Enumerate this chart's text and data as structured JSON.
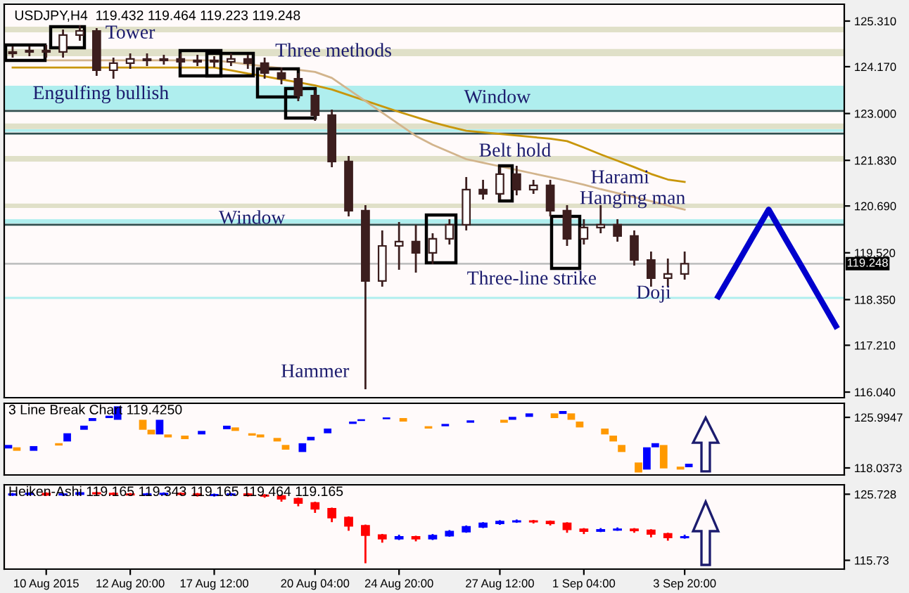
{
  "chart_data": [
    {
      "type": "candlestick",
      "title": "USDJPY,H4  119.432 119.464 119.223 119.248",
      "color": "#3c1e1e",
      "tick_labels": "y",
      "categories": [
        null,
        null,
        null,
        null,
        null,
        null,
        null,
        null,
        null,
        null,
        null,
        null,
        null,
        null,
        null,
        null,
        null,
        null,
        null,
        null,
        null,
        null,
        null,
        null,
        null,
        null,
        null,
        null,
        null,
        null,
        null,
        null,
        null,
        null,
        null,
        null,
        null,
        null,
        null,
        null,
        null,
        null,
        null,
        null,
        null,
        null,
        null,
        null,
        null,
        null
      ],
      "ohlc": [
        [
          124.502,
          124.678,
          124.397,
          124.538
        ],
        [
          124.538,
          124.678,
          124.432,
          124.573
        ],
        [
          124.573,
          124.713,
          124.397,
          124.538
        ],
        [
          124.538,
          125.099,
          124.397,
          124.959
        ],
        [
          124.959,
          125.205,
          124.818,
          125.064
        ],
        [
          125.064,
          125.134,
          123.941,
          124.081
        ],
        [
          124.081,
          124.397,
          123.87,
          124.257
        ],
        [
          124.257,
          124.502,
          124.116,
          124.362
        ],
        [
          124.362,
          124.502,
          124.186,
          124.327
        ],
        [
          124.327,
          124.467,
          124.222,
          124.362
        ],
        [
          124.362,
          124.502,
          124.151,
          124.292
        ],
        [
          124.292,
          124.467,
          124.186,
          124.327
        ],
        [
          124.327,
          124.432,
          124.151,
          124.292
        ],
        [
          124.292,
          124.502,
          124.186,
          124.362
        ],
        [
          124.362,
          124.467,
          124.116,
          124.257
        ],
        [
          124.257,
          124.397,
          123.87,
          124.011
        ],
        [
          124.011,
          124.151,
          123.73,
          123.87
        ],
        [
          123.87,
          124.011,
          123.309,
          123.449
        ],
        [
          123.449,
          123.59,
          122.817,
          122.958
        ],
        [
          122.958,
          123.098,
          121.658,
          121.799
        ],
        [
          121.799,
          121.939,
          120.43,
          120.57
        ],
        [
          120.57,
          120.711,
          116.111,
          118.815
        ],
        [
          118.815,
          120.079,
          118.674,
          119.692
        ],
        [
          119.692,
          120.289,
          119.096,
          119.798
        ],
        [
          119.798,
          120.219,
          119.025,
          119.517
        ],
        [
          119.517,
          120.008,
          119.236,
          119.868
        ],
        [
          119.868,
          120.36,
          119.727,
          120.219
        ],
        [
          120.219,
          121.413,
          120.079,
          121.097
        ],
        [
          121.097,
          121.343,
          120.851,
          120.992
        ],
        [
          120.992,
          121.658,
          120.851,
          121.483
        ],
        [
          121.483,
          121.694,
          120.956,
          121.097
        ],
        [
          121.097,
          121.343,
          120.992,
          121.202
        ],
        [
          121.202,
          121.343,
          120.43,
          120.57
        ],
        [
          120.57,
          120.711,
          119.692,
          119.868
        ],
        [
          119.868,
          120.36,
          119.727,
          120.149
        ],
        [
          120.149,
          120.711,
          120.008,
          120.219
        ],
        [
          120.219,
          120.36,
          119.798,
          119.938
        ],
        [
          119.938,
          120.079,
          119.201,
          119.341
        ],
        [
          119.341,
          119.552,
          118.674,
          118.885
        ],
        [
          118.885,
          119.376,
          118.674,
          118.99
        ],
        [
          118.99,
          119.552,
          118.85,
          119.248
        ],
        null,
        null,
        null,
        null,
        null,
        null,
        null,
        null,
        null
      ],
      "series": [
        {
          "type": "line",
          "color": "#c8960a",
          "values": [
            124.15,
            124.15,
            124.15,
            124.15,
            124.15,
            124.15,
            124.15,
            124.15,
            124.15,
            124.15,
            124.15,
            124.15,
            124.15,
            124.08,
            124.0,
            123.93,
            123.85,
            123.78,
            123.7,
            123.6,
            123.46,
            123.32,
            123.18,
            123.04,
            122.91,
            122.78,
            122.67,
            122.57,
            122.53,
            122.49,
            122.45,
            122.41,
            122.37,
            122.31,
            122.15,
            121.98,
            121.82,
            121.66,
            121.49,
            121.35,
            121.29,
            null,
            null,
            null,
            null,
            null,
            null,
            null,
            null,
            null
          ]
        },
        {
          "type": "line",
          "color": "#d2b48c",
          "values": [
            124.33,
            124.33,
            124.33,
            124.33,
            124.33,
            124.33,
            124.33,
            124.33,
            124.33,
            124.33,
            124.33,
            124.33,
            124.33,
            124.28,
            124.23,
            124.18,
            124.13,
            124.09,
            124.04,
            123.89,
            123.6,
            123.31,
            123.02,
            122.73,
            122.44,
            122.22,
            122.04,
            121.86,
            121.77,
            121.68,
            121.59,
            121.5,
            121.41,
            121.32,
            121.22,
            121.11,
            121.01,
            120.91,
            120.81,
            120.7,
            120.6,
            null,
            null,
            null,
            null,
            null,
            null,
            null,
            null,
            null
          ]
        },
        {
          "type": "line",
          "color": "#0000cd",
          "values": [
            null,
            null,
            null,
            null,
            null,
            null,
            null,
            null,
            null,
            null,
            null,
            null,
            null,
            null,
            null,
            null,
            null,
            null,
            null,
            null,
            null,
            null,
            null,
            null,
            null,
            null,
            null,
            null,
            null,
            null,
            null,
            null,
            null,
            null,
            null,
            null,
            null,
            null,
            null,
            null,
            null,
            null,
            118.43,
            119.15,
            119.88,
            120.6,
            119.87,
            119.15,
            118.42,
            117.69
          ]
        }
      ],
      "ylim": [
        115.9,
        125.731
      ],
      "yticks": [
        {
          "value": 125.31,
          "label": "125.310"
        },
        {
          "value": 124.17,
          "label": "124.170"
        },
        {
          "value": 123.0,
          "label": "123.000"
        },
        {
          "value": 121.83,
          "label": "121.830"
        },
        {
          "value": 120.69,
          "label": "120.690"
        },
        {
          "value": 119.52,
          "label": "119.520"
        },
        {
          "value": 118.35,
          "label": "118.350"
        },
        {
          "value": 117.21,
          "label": "117.210"
        },
        {
          "value": 116.04,
          "label": "116.040"
        }
      ],
      "bands": [
        {
          "axis": "y",
          "from": 123.098,
          "to": 123.695,
          "color": "#afeeee"
        },
        {
          "axis": "y",
          "from": 122.54,
          "to": 122.61,
          "color": "#afeeee"
        },
        {
          "axis": "y",
          "from": 120.254,
          "to": 120.36,
          "color": "#afeeee"
        },
        {
          "axis": "y",
          "from": 125.03,
          "to": 125.17,
          "color": "#e0e0c8"
        },
        {
          "axis": "y",
          "from": 124.43,
          "to": 124.61,
          "color": "#e0e0c8"
        },
        {
          "axis": "y",
          "from": 122.61,
          "to": 122.75,
          "color": "#e0e0c8"
        },
        {
          "axis": "y",
          "from": 121.8,
          "to": 121.94,
          "color": "#e0e0c8"
        },
        {
          "axis": "y",
          "from": 120.64,
          "to": 120.75,
          "color": "#e0e0c8"
        }
      ],
      "ref_lines": [
        {
          "axis": "y",
          "value": 123.063,
          "color": "#2f4f4f"
        },
        {
          "axis": "y",
          "value": 122.5,
          "color": "#2f4f4f"
        },
        {
          "axis": "y",
          "value": 120.219,
          "color": "#2f4f4f"
        },
        {
          "axis": "y",
          "value": 118.393,
          "color": "#afeeee"
        },
        {
          "axis": "y",
          "value": 119.248,
          "label": "119.248",
          "color": "#c0c0c0"
        }
      ],
      "annotations": [
        "Tower",
        "Three methods",
        "Engulfing bullish",
        "Window",
        "Window",
        "Belt hold",
        "Harami",
        "Hanging man",
        "Three-line strike",
        "Doji",
        "Hammer"
      ]
    },
    {
      "type": "bar",
      "title": "3 Line Break Chart 119.4250",
      "tick_labels": "y",
      "categories": [
        null,
        null,
        null,
        null,
        null,
        null,
        null,
        null,
        null,
        null,
        null,
        null,
        null,
        null,
        null,
        null,
        null,
        null,
        null,
        null,
        null,
        null,
        null,
        null,
        null,
        null,
        null,
        null,
        null,
        null,
        null,
        null,
        null,
        null,
        null,
        null,
        null,
        null,
        null,
        null,
        null,
        null,
        null,
        null,
        null,
        null,
        null,
        null,
        null,
        null,
        null,
        null,
        null,
        null,
        null,
        null,
        null,
        null,
        null,
        null,
        null,
        null,
        null,
        null,
        null,
        null,
        null,
        null,
        null,
        null,
        null,
        null,
        null,
        null,
        null,
        null,
        null,
        null,
        null,
        null,
        null,
        null,
        null,
        null,
        null,
        null,
        null,
        null,
        null,
        null,
        null,
        null,
        null,
        null,
        null,
        null,
        null,
        null,
        null,
        null
      ],
      "values": [
        0.55,
        0.55,
        null,
        0.74,
        null,
        null,
        0.37,
        1.29,
        null,
        0.65,
        0.46,
        null,
        0.37,
        2.12,
        null,
        null,
        1.57,
        0.74,
        2.3,
        0.46,
        null,
        0.55,
        null,
        0.55,
        null,
        null,
        0.55,
        0.55,
        null,
        0.37,
        0.46,
        null,
        0.55,
        0.74,
        null,
        1.38,
        0.55,
        null,
        0.74,
        null,
        null,
        0.37,
        0.28,
        null,
        null,
        0.28,
        null,
        0.55,
        null,
        null,
        0.37,
        null,
        0.37,
        null,
        null,
        0.37,
        null,
        null,
        null,
        0.46,
        0.46,
        null,
        0.55,
        null,
        null,
        0.74,
        0.46,
        1.01,
        0.92,
        null,
        null,
        0.92,
        0.92,
        1.11,
        null,
        1.57,
        3.5,
        0.65,
        3.68,
        null,
        0.46,
        0.55,
        null,
        null,
        null,
        null,
        null,
        null,
        null,
        null,
        null,
        null,
        null,
        null,
        null,
        null,
        null,
        null,
        null,
        null
      ],
      "base": [
        121.1,
        120.73,
        null,
        120.73,
        null,
        null,
        121.56,
        122.2,
        null,
        124.04,
        125.42,
        null,
        125.88,
        125.61,
        null,
        null,
        124.04,
        123.31,
        123.31,
        122.84,
        null,
        122.57,
        null,
        123.31,
        null,
        null,
        124.13,
        123.86,
        null,
        123.12,
        122.84,
        null,
        122.2,
        120.91,
        null,
        120.54,
        122.38,
        null,
        123.49,
        null,
        null,
        124.96,
        125.42,
        null,
        null,
        125.7,
        null,
        125.33,
        null,
        null,
        124.23,
        null,
        124.59,
        null,
        null,
        125.15,
        null,
        null,
        null,
        125.15,
        125.61,
        null,
        126.07,
        null,
        null,
        125.88,
        126.53,
        125.61,
        124.41,
        null,
        null,
        123.31,
        122.2,
        120.54,
        null,
        117.32,
        117.78,
        121.28,
        117.96,
        null,
        117.78,
        118.15,
        null,
        null,
        null,
        null,
        null,
        null,
        null,
        null,
        null,
        null,
        null,
        null,
        null,
        null,
        null,
        null,
        null,
        null
      ],
      "colors": [
        "#0000ff",
        "#ff9900",
        null,
        "#0000ff",
        null,
        null,
        "#ff9900",
        "#0000ff",
        null,
        "#0000ff",
        "#0000ff",
        null,
        "#0000ff",
        "#0000ff",
        null,
        null,
        "#ff9900",
        "#ff9900",
        "#0000ff",
        "#ff9900",
        null,
        "#ff9900",
        null,
        "#0000ff",
        null,
        null,
        "#0000ff",
        "#ff9900",
        null,
        "#ff9900",
        "#ff9900",
        null,
        "#ff9900",
        "#ff9900",
        null,
        "#0000ff",
        "#0000ff",
        null,
        "#0000ff",
        null,
        null,
        "#0000ff",
        "#0000ff",
        null,
        null,
        "#0000ff",
        null,
        "#ff9900",
        null,
        null,
        "#ff9900",
        null,
        "#0000ff",
        null,
        null,
        "#0000ff",
        null,
        null,
        null,
        "#ff9900",
        "#0000ff",
        null,
        "#0000ff",
        null,
        null,
        "#ff9900",
        "#0000ff",
        "#ff9900",
        "#ff9900",
        null,
        null,
        "#ff9900",
        "#ff9900",
        "#ff9900",
        null,
        "#ff9900",
        "#0000ff",
        "#0000ff",
        "#ff9900",
        null,
        "#ff9900",
        "#0000ff",
        null,
        null,
        null,
        null,
        null,
        null,
        null,
        null,
        null,
        null,
        null,
        null,
        null,
        null,
        null,
        null,
        null,
        null
      ],
      "ylim": [
        116.93,
        128.205
      ],
      "yticks": [
        125.9947,
        118.0373
      ]
    },
    {
      "type": "candlestick",
      "title": "Heiken-Ashi 119.165 119.343 119.165 119.464 119.165",
      "categories": [
        null,
        null,
        "10 Aug 2015",
        null,
        null,
        null,
        null,
        "12 Aug 20:00",
        null,
        null,
        null,
        null,
        "17 Aug 12:00",
        null,
        null,
        null,
        null,
        null,
        "20 Aug 04:00",
        null,
        null,
        null,
        null,
        "24 Aug 20:00",
        null,
        null,
        null,
        null,
        null,
        "27 Aug 12:00",
        null,
        null,
        null,
        null,
        "1 Sep 04:00",
        null,
        null,
        null,
        null,
        null,
        "3 Sep 20:00",
        null,
        null,
        null,
        null,
        null,
        null,
        null,
        null,
        null
      ],
      "ohlc": [
        [
          125.647,
          125.915,
          125.467,
          125.735
        ],
        [
          125.735,
          126.004,
          125.555,
          125.824
        ],
        [
          125.824,
          126.004,
          125.467,
          125.647
        ],
        [
          125.647,
          125.915,
          125.467,
          125.735
        ],
        [
          125.735,
          126.092,
          125.555,
          125.912
        ],
        [
          125.912,
          126.092,
          125.644,
          125.824
        ],
        [
          125.824,
          126.004,
          125.555,
          125.735
        ],
        [
          125.735,
          125.915,
          125.467,
          125.647
        ],
        [
          125.647,
          125.915,
          125.467,
          125.735
        ],
        [
          125.735,
          126.004,
          125.555,
          125.824
        ],
        [
          125.824,
          126.004,
          125.555,
          125.735
        ],
        [
          125.735,
          125.915,
          125.378,
          125.558
        ],
        [
          125.558,
          125.827,
          125.378,
          125.647
        ],
        [
          125.647,
          125.915,
          125.467,
          125.735
        ],
        [
          125.735,
          125.915,
          125.378,
          125.558
        ],
        [
          125.558,
          125.738,
          125.2,
          125.47
        ],
        [
          125.47,
          125.65,
          124.6,
          125.027
        ],
        [
          125.027,
          125.207,
          123.9,
          124.407
        ],
        [
          124.407,
          124.587,
          122.9,
          123.522
        ],
        [
          123.522,
          123.702,
          121.5,
          122.194
        ],
        [
          122.194,
          122.374,
          120.2,
          120.954
        ],
        [
          120.954,
          121.134,
          115.287,
          119.537
        ],
        [
          119.537,
          119.717,
          118.4,
          119.006
        ],
        [
          119.006,
          119.6,
          118.8,
          119.272
        ],
        [
          119.272,
          119.45,
          118.6,
          119.006
        ],
        [
          119.006,
          119.7,
          118.8,
          119.449
        ],
        [
          119.449,
          120.3,
          119.3,
          120.069
        ],
        [
          120.069,
          121.0,
          119.9,
          120.777
        ],
        [
          120.777,
          121.5,
          120.6,
          121.308
        ],
        [
          121.308,
          121.8,
          121.1,
          121.574
        ],
        [
          121.574,
          121.9,
          121.4,
          121.662
        ],
        [
          121.662,
          121.84,
          121.3,
          121.574
        ],
        [
          121.574,
          121.75,
          121.0,
          121.308
        ],
        [
          121.308,
          121.49,
          119.9,
          120.423
        ],
        [
          120.423,
          120.6,
          119.7,
          120.157
        ],
        [
          120.157,
          120.6,
          120.0,
          120.334
        ],
        [
          120.334,
          120.7,
          120.2,
          120.423
        ],
        [
          120.423,
          120.6,
          119.9,
          120.246
        ],
        [
          120.246,
          120.43,
          119.2,
          119.714
        ],
        [
          119.714,
          119.9,
          118.7,
          119.183
        ],
        [
          119.183,
          119.6,
          119.0,
          119.272
        ],
        null,
        null,
        null,
        null,
        null,
        null,
        null,
        null,
        null
      ],
      "colors": [
        "#0000ff",
        "#0000ff",
        "#ff0000",
        "#0000ff",
        "#0000ff",
        "#ff0000",
        "#ff0000",
        "#ff0000",
        "#0000ff",
        "#0000ff",
        "#ff0000",
        "#ff0000",
        "#0000ff",
        "#0000ff",
        "#ff0000",
        "#ff0000",
        "#ff0000",
        "#ff0000",
        "#ff0000",
        "#ff0000",
        "#ff0000",
        "#ff0000",
        "#ff0000",
        "#0000ff",
        "#ff0000",
        "#0000ff",
        "#0000ff",
        "#0000ff",
        "#0000ff",
        "#0000ff",
        "#0000ff",
        "#ff0000",
        "#ff0000",
        "#ff0000",
        "#ff0000",
        "#0000ff",
        "#0000ff",
        "#ff0000",
        "#ff0000",
        "#ff0000",
        "#0000ff",
        null,
        null,
        null,
        null,
        null,
        null,
        null,
        null,
        null
      ],
      "ylim": [
        114.4,
        127.15
      ],
      "yticks": [
        125.728,
        115.73
      ]
    }
  ]
}
